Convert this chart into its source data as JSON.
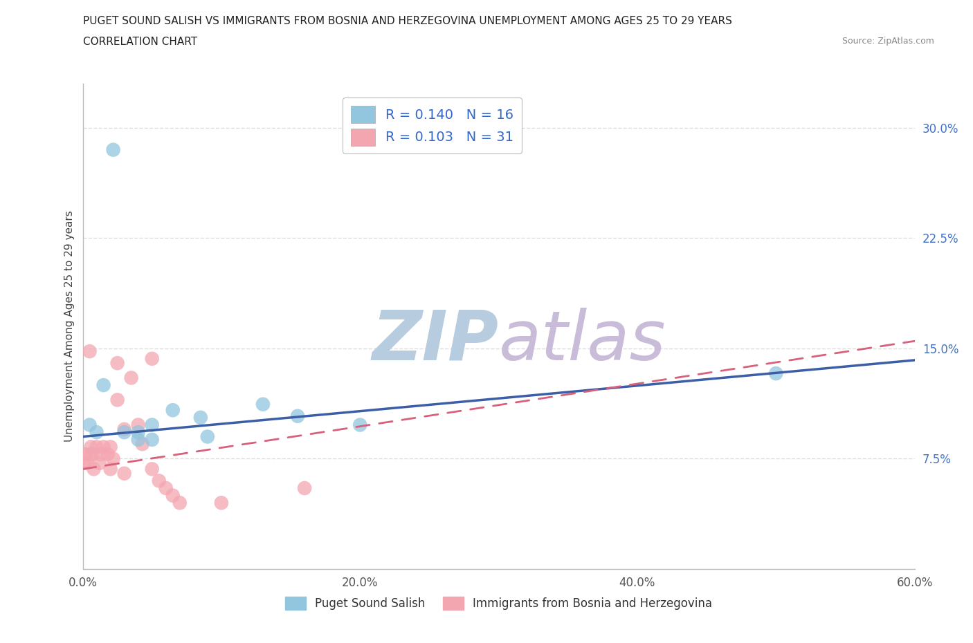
{
  "title_line1": "PUGET SOUND SALISH VS IMMIGRANTS FROM BOSNIA AND HERZEGOVINA UNEMPLOYMENT AMONG AGES 25 TO 29 YEARS",
  "title_line2": "CORRELATION CHART",
  "source": "Source: ZipAtlas.com",
  "ylabel": "Unemployment Among Ages 25 to 29 years",
  "xlim": [
    0.0,
    0.6
  ],
  "ylim": [
    0.0,
    0.33
  ],
  "ytick_vals": [
    0.075,
    0.15,
    0.225,
    0.3
  ],
  "ytick_labels": [
    "7.5%",
    "15.0%",
    "22.5%",
    "30.0%"
  ],
  "xtick_vals": [
    0.0,
    0.1,
    0.2,
    0.3,
    0.4,
    0.5,
    0.6
  ],
  "xtick_labels": [
    "0.0%",
    "",
    "20.0%",
    "",
    "40.0%",
    "",
    "60.0%"
  ],
  "blue_scatter_x": [
    0.022,
    0.03,
    0.04,
    0.04,
    0.05,
    0.05,
    0.065,
    0.085,
    0.09,
    0.13,
    0.155,
    0.2,
    0.5,
    0.005,
    0.01,
    0.015
  ],
  "blue_scatter_y": [
    0.285,
    0.093,
    0.088,
    0.093,
    0.088,
    0.098,
    0.108,
    0.103,
    0.09,
    0.112,
    0.104,
    0.098,
    0.133,
    0.098,
    0.093,
    0.125
  ],
  "pink_scatter_x": [
    0.001,
    0.002,
    0.003,
    0.005,
    0.006,
    0.007,
    0.008,
    0.01,
    0.012,
    0.013,
    0.015,
    0.018,
    0.02,
    0.022,
    0.025,
    0.03,
    0.035,
    0.04,
    0.043,
    0.05,
    0.055,
    0.06,
    0.065,
    0.07,
    0.1,
    0.16,
    0.02,
    0.025,
    0.03,
    0.05,
    0.005
  ],
  "pink_scatter_y": [
    0.072,
    0.078,
    0.072,
    0.078,
    0.083,
    0.078,
    0.068,
    0.083,
    0.072,
    0.078,
    0.083,
    0.078,
    0.083,
    0.075,
    0.14,
    0.095,
    0.13,
    0.098,
    0.085,
    0.068,
    0.06,
    0.055,
    0.05,
    0.045,
    0.045,
    0.055,
    0.068,
    0.115,
    0.065,
    0.143,
    0.148
  ],
  "blue_R": 0.14,
  "blue_N": 16,
  "pink_R": 0.103,
  "pink_N": 31,
  "blue_scatter_color": "#92C5DE",
  "pink_scatter_color": "#F4A6B0",
  "blue_line_color": "#3B5EA6",
  "pink_line_color": "#D9607A",
  "watermark_zip": "ZIP",
  "watermark_atlas": "atlas",
  "watermark_color_zip": "#C0D4E8",
  "watermark_color_atlas": "#D0C8E0",
  "legend_label_blue": "Puget Sound Salish",
  "legend_label_pink": "Immigrants from Bosnia and Herzegovina",
  "background_color": "#FFFFFF",
  "grid_color": "#DDDDDD"
}
